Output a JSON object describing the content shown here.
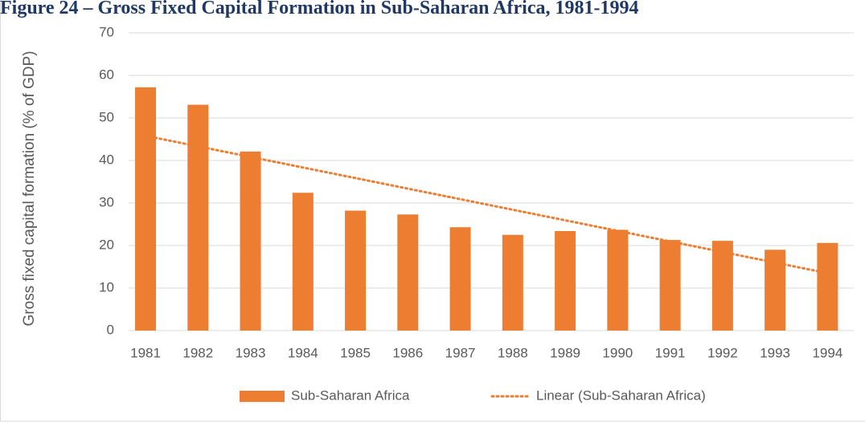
{
  "chart_data": {
    "type": "bar",
    "title": "Figure 24 – Gross Fixed Capital Formation in Sub-Saharan Africa, 1981-1994",
    "ylabel": "Gross fixed capital formation (% of GDP)",
    "categories": [
      "1981",
      "1982",
      "1983",
      "1984",
      "1985",
      "1986",
      "1987",
      "1988",
      "1989",
      "1990",
      "1991",
      "1992",
      "1993",
      "1994"
    ],
    "series": [
      {
        "name": "Sub-Saharan Africa",
        "color": "#ed7d31",
        "values": [
          57.2,
          53.1,
          42.1,
          32.4,
          28.2,
          27.3,
          24.3,
          22.5,
          23.4,
          23.7,
          21.3,
          21.1,
          19.0,
          20.6
        ]
      }
    ],
    "trendline": {
      "name": "Linear (Sub-Saharan Africa)",
      "color": "#ed7d31",
      "start": 45.8,
      "end": 13.5
    },
    "ylim": [
      0,
      70
    ],
    "yticks": [
      0,
      10,
      20,
      30,
      40,
      50,
      60,
      70
    ],
    "grid": true,
    "legend": "bottom"
  }
}
